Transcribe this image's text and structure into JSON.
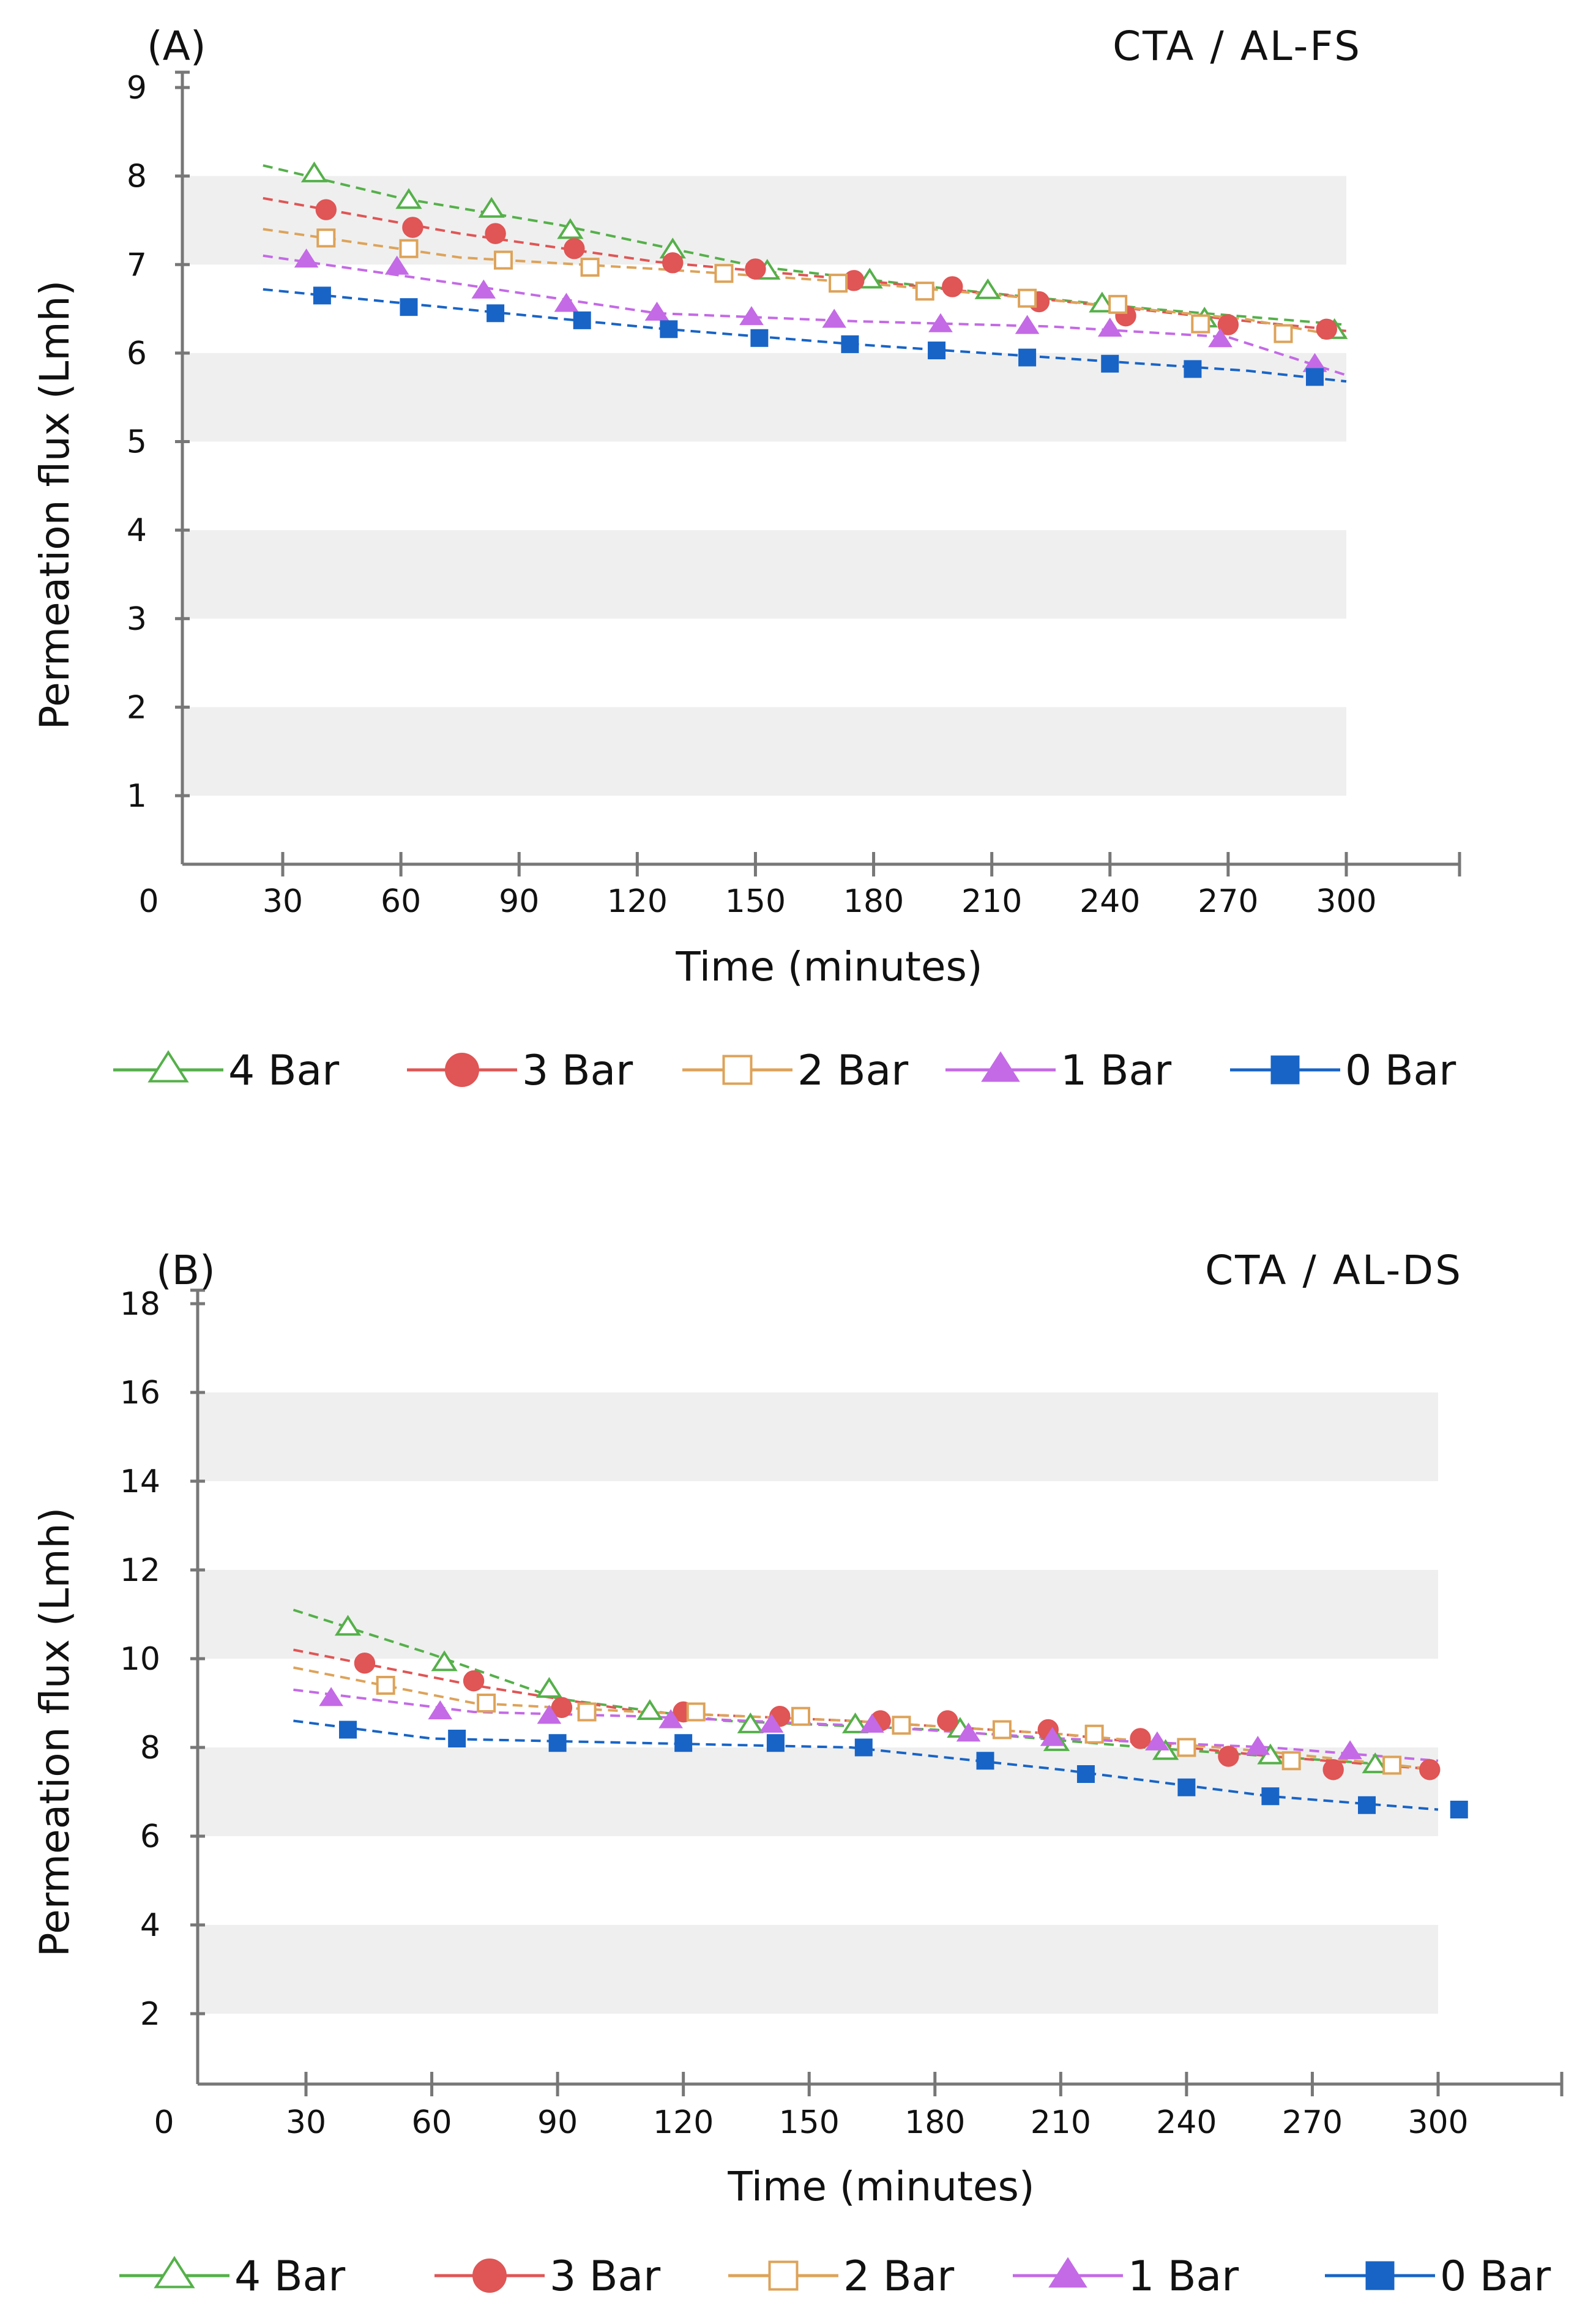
{
  "colors": {
    "4 Bar": "#55b04a",
    "3 Bar": "#e05555",
    "2 Bar": "#dda35a",
    "1 Bar": "#c46ae6",
    "0 Bar": "#1864c6",
    "axis": "#777777",
    "band": "#efefef"
  },
  "chart_data": [
    {
      "type": "line",
      "panel": "(A)",
      "title": "CTA / AL-FS",
      "xlabel": "Time (minutes)",
      "ylabel": "Permeation flux (Lmh)",
      "xlim": [
        0,
        330
      ],
      "ylim": [
        0,
        9
      ],
      "x_ticks": [
        0,
        30,
        60,
        90,
        120,
        150,
        180,
        210,
        240,
        270,
        300
      ],
      "y_ticks": [
        1,
        2,
        3,
        4,
        5,
        6,
        7,
        8,
        9
      ],
      "legend_position": "bottom",
      "series": [
        {
          "name": "4 Bar",
          "marker": "triangle-open",
          "x": [
            38,
            62,
            83,
            103,
            129,
            153,
            179,
            209,
            238,
            264,
            297
          ],
          "y": [
            8.02,
            7.72,
            7.62,
            7.38,
            7.16,
            6.92,
            6.82,
            6.7,
            6.55,
            6.38,
            6.25
          ],
          "trend": [
            [
              25,
              8.12
            ],
            [
              60,
              7.75
            ],
            [
              100,
              7.45
            ],
            [
              150,
              6.98
            ],
            [
              200,
              6.72
            ],
            [
              250,
              6.5
            ],
            [
              300,
              6.32
            ]
          ]
        },
        {
          "name": "3 Bar",
          "marker": "circle-filled",
          "x": [
            41,
            63,
            84,
            104,
            129,
            150,
            175,
            200,
            222,
            244,
            270,
            295
          ],
          "y": [
            7.62,
            7.42,
            7.35,
            7.18,
            7.02,
            6.95,
            6.82,
            6.75,
            6.58,
            6.42,
            6.32,
            6.27
          ],
          "trend": [
            [
              25,
              7.75
            ],
            [
              75,
              7.35
            ],
            [
              125,
              7.03
            ],
            [
              175,
              6.83
            ],
            [
              225,
              6.6
            ],
            [
              275,
              6.36
            ],
            [
              300,
              6.25
            ]
          ]
        },
        {
          "name": "2 Bar",
          "marker": "square-open",
          "x": [
            41,
            62,
            86,
            108,
            142,
            171,
            193,
            219,
            242,
            263,
            284
          ],
          "y": [
            7.3,
            7.18,
            7.05,
            6.97,
            6.9,
            6.79,
            6.7,
            6.62,
            6.55,
            6.33,
            6.22
          ],
          "trend": [
            [
              25,
              7.4
            ],
            [
              75,
              7.08
            ],
            [
              125,
              6.95
            ],
            [
              175,
              6.8
            ],
            [
              225,
              6.6
            ],
            [
              275,
              6.38
            ],
            [
              300,
              6.18
            ]
          ]
        },
        {
          "name": "1 Bar",
          "marker": "triangle-filled",
          "x": [
            36,
            59,
            81,
            102,
            125,
            149,
            170,
            197,
            219,
            240,
            268,
            292
          ],
          "y": [
            7.05,
            6.97,
            6.7,
            6.55,
            6.45,
            6.4,
            6.37,
            6.32,
            6.3,
            6.27,
            6.15,
            5.87
          ],
          "trend": [
            [
              25,
              7.1
            ],
            [
              75,
              6.78
            ],
            [
              125,
              6.45
            ],
            [
              175,
              6.36
            ],
            [
              225,
              6.3
            ],
            [
              270,
              6.18
            ],
            [
              300,
              5.75
            ]
          ]
        },
        {
          "name": "0 Bar",
          "marker": "square-filled",
          "x": [
            40,
            62,
            84,
            106,
            128,
            151,
            174,
            196,
            219,
            240,
            261,
            292
          ],
          "y": [
            6.65,
            6.52,
            6.45,
            6.37,
            6.27,
            6.17,
            6.1,
            6.03,
            5.95,
            5.88,
            5.82,
            5.73
          ],
          "trend": [
            [
              25,
              6.72
            ],
            [
              75,
              6.5
            ],
            [
              125,
              6.28
            ],
            [
              175,
              6.1
            ],
            [
              225,
              5.95
            ],
            [
              275,
              5.8
            ],
            [
              300,
              5.68
            ]
          ]
        }
      ]
    },
    {
      "type": "line",
      "panel": "(B)",
      "title": "CTA / AL-DS",
      "xlabel": "Time (minutes)",
      "ylabel": "Permeation flux (Lmh)",
      "xlim": [
        0,
        330
      ],
      "ylim": [
        0,
        18
      ],
      "x_ticks": [
        0,
        30,
        60,
        90,
        120,
        150,
        180,
        210,
        240,
        270,
        300
      ],
      "y_ticks": [
        2,
        4,
        6,
        8,
        10,
        12,
        14,
        16,
        18
      ],
      "legend_position": "bottom",
      "series": [
        {
          "name": "4 Bar",
          "marker": "triangle-open",
          "x": [
            40,
            63,
            88,
            112,
            136,
            161,
            186,
            209,
            235,
            260,
            285
          ],
          "y": [
            10.7,
            9.9,
            9.3,
            8.8,
            8.5,
            8.5,
            8.4,
            8.1,
            7.9,
            7.8,
            7.6
          ],
          "trend": [
            [
              27,
              11.1
            ],
            [
              60,
              10.1
            ],
            [
              90,
              9.1
            ],
            [
              130,
              8.6
            ],
            [
              180,
              8.4
            ],
            [
              230,
              8.0
            ],
            [
              290,
              7.6
            ]
          ]
        },
        {
          "name": "3 Bar",
          "marker": "circle-filled",
          "x": [
            44,
            70,
            91,
            120,
            143,
            167,
            183,
            207,
            229,
            250,
            275,
            298
          ],
          "y": [
            9.9,
            9.5,
            8.9,
            8.8,
            8.7,
            8.6,
            8.6,
            8.4,
            8.2,
            7.8,
            7.5,
            7.5
          ],
          "trend": [
            [
              27,
              10.2
            ],
            [
              70,
              9.4
            ],
            [
              110,
              8.8
            ],
            [
              160,
              8.6
            ],
            [
              210,
              8.3
            ],
            [
              260,
              7.8
            ],
            [
              300,
              7.5
            ]
          ]
        },
        {
          "name": "2 Bar",
          "marker": "square-open",
          "x": [
            49,
            73,
            97,
            123,
            148,
            172,
            196,
            218,
            240,
            265,
            289
          ],
          "y": [
            9.4,
            9.0,
            8.8,
            8.8,
            8.7,
            8.5,
            8.4,
            8.3,
            8.0,
            7.7,
            7.6
          ],
          "trend": [
            [
              27,
              9.8
            ],
            [
              70,
              9.0
            ],
            [
              110,
              8.8
            ],
            [
              160,
              8.6
            ],
            [
              210,
              8.3
            ],
            [
              260,
              7.9
            ],
            [
              300,
              7.5
            ]
          ]
        },
        {
          "name": "1 Bar",
          "marker": "triangle-filled",
          "x": [
            36,
            62,
            88,
            117,
            141,
            165,
            188,
            208,
            233,
            257,
            279
          ],
          "y": [
            9.1,
            8.8,
            8.7,
            8.6,
            8.5,
            8.5,
            8.3,
            8.2,
            8.1,
            8.0,
            7.9
          ],
          "trend": [
            [
              27,
              9.3
            ],
            [
              70,
              8.8
            ],
            [
              110,
              8.7
            ],
            [
              160,
              8.5
            ],
            [
              210,
              8.2
            ],
            [
              260,
              8.0
            ],
            [
              300,
              7.7
            ]
          ]
        },
        {
          "name": "0 Bar",
          "marker": "square-filled",
          "x": [
            40,
            66,
            90,
            120,
            142,
            163,
            192,
            216,
            240,
            260,
            283,
            305
          ],
          "y": [
            8.4,
            8.2,
            8.1,
            8.1,
            8.1,
            8.0,
            7.7,
            7.4,
            7.1,
            6.9,
            6.7,
            6.6
          ],
          "trend": [
            [
              27,
              8.6
            ],
            [
              60,
              8.2
            ],
            [
              110,
              8.1
            ],
            [
              160,
              8.0
            ],
            [
              210,
              7.5
            ],
            [
              260,
              6.9
            ],
            [
              300,
              6.6
            ]
          ]
        }
      ]
    }
  ]
}
